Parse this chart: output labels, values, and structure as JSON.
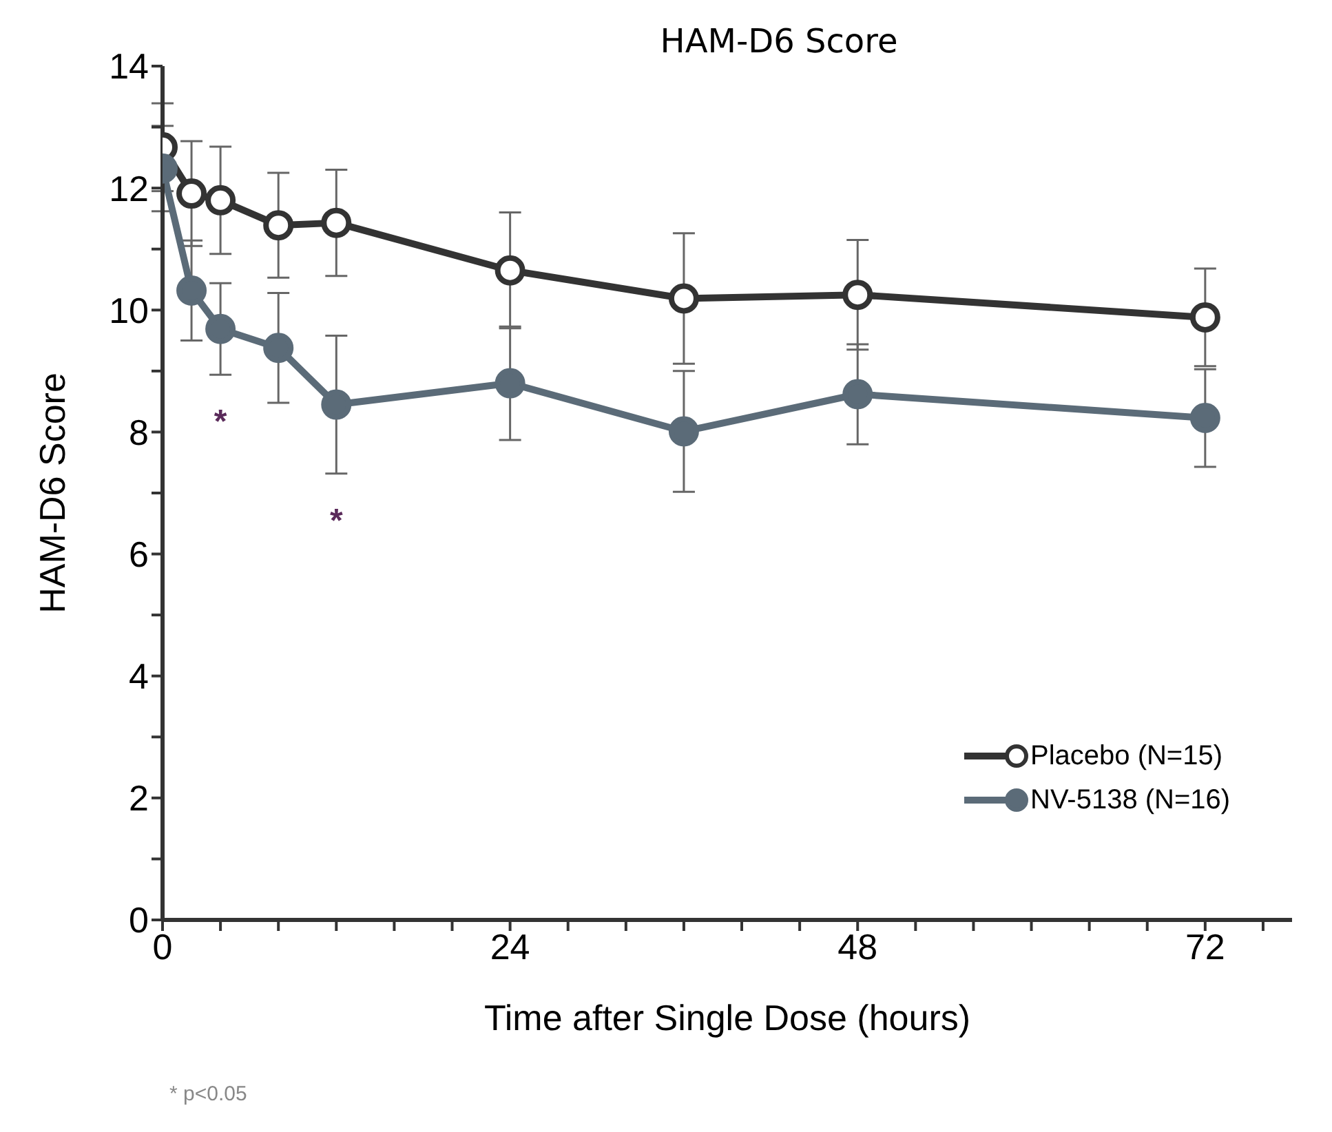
{
  "chart_data": {
    "type": "line",
    "title": "HAM-D6 Score",
    "xlabel": "Time after Single Dose (hours)",
    "ylabel": "HAM-D6 Score",
    "x": [
      0,
      2,
      4,
      8,
      12,
      24,
      36,
      48,
      72
    ],
    "series": [
      {
        "name": "Placebo (N=15)",
        "color": "#333333",
        "values": [
          12.67,
          11.91,
          11.8,
          11.39,
          11.43,
          10.65,
          10.19,
          10.25,
          9.88
        ],
        "errors": [
          0.72,
          0.86,
          0.88,
          0.86,
          0.87,
          0.95,
          1.07,
          0.9,
          0.8
        ]
      },
      {
        "name": "NV-5138 (N=16)",
        "color": "#5b6b78",
        "values": [
          12.32,
          10.32,
          9.69,
          9.38,
          8.45,
          8.8,
          8.01,
          8.62,
          8.23
        ],
        "errors": [
          0.7,
          0.82,
          0.75,
          0.9,
          1.13,
          0.93,
          0.99,
          0.82,
          0.8
        ]
      }
    ],
    "xlim": [
      0,
      78
    ],
    "xticks": [
      0,
      {
        "value": 4,
        "label": null
      },
      {
        "value": 8,
        "label": null
      },
      {
        "value": 12,
        "label": null
      },
      {
        "value": 16,
        "label": null
      },
      {
        "value": 20,
        "label": null
      },
      24,
      {
        "value": 28,
        "label": null
      },
      {
        "value": 32,
        "label": null
      },
      {
        "value": 36,
        "label": null
      },
      {
        "value": 40,
        "label": null
      },
      {
        "value": 44,
        "label": null
      },
      48,
      {
        "value": 52,
        "label": null
      },
      {
        "value": 56,
        "label": null
      },
      {
        "value": 60,
        "label": null
      },
      {
        "value": 64,
        "label": null
      },
      {
        "value": 68,
        "label": null
      },
      72,
      {
        "value": 76,
        "label": null
      }
    ],
    "ylim": [
      0,
      14
    ],
    "yticks": [
      0,
      {
        "value": 1,
        "label": null
      },
      2,
      {
        "value": 3,
        "label": null
      },
      4,
      {
        "value": 5,
        "label": null
      },
      6,
      {
        "value": 7,
        "label": null
      },
      8,
      {
        "value": 9,
        "label": null
      },
      10,
      {
        "value": 11,
        "label": null
      },
      12,
      {
        "value": 13,
        "label": null
      },
      14
    ],
    "annotations": [
      {
        "text": "*",
        "x": 4,
        "y": 9.69
      },
      {
        "text": "*",
        "x": 12,
        "y": 8.45
      },
      "* p<0.05"
    ],
    "marker": "circle",
    "line_style": "solid",
    "legend": "bottom right",
    "grid": false
  }
}
